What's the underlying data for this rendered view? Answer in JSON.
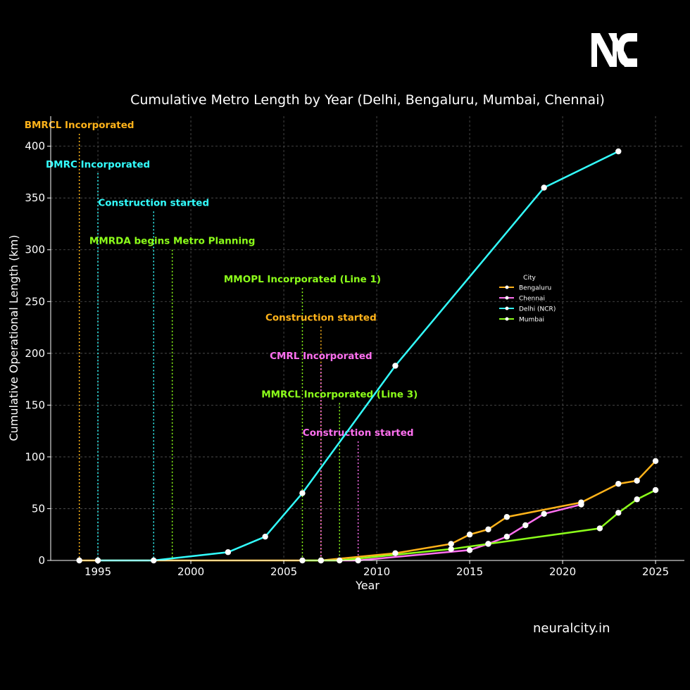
{
  "brand": {
    "logo_text": "NC",
    "watermark": "neuralcity.in"
  },
  "chart_data": {
    "type": "line",
    "title": "Cumulative Metro Length by Year (Delhi, Bengaluru, Mumbai, Chennai)",
    "xlabel": "Year",
    "ylabel": "Cumulative Operational Length (km)",
    "xlim": [
      1992.46,
      2026.55
    ],
    "ylim": [
      0,
      429
    ],
    "xticks": [
      1995,
      2000,
      2005,
      2010,
      2015,
      2020,
      2025
    ],
    "yticks": [
      0,
      50,
      100,
      150,
      200,
      250,
      300,
      350,
      400
    ],
    "grid": true,
    "background": "#000000",
    "legend": {
      "title": "City",
      "placement": "center-right"
    },
    "series": [
      {
        "name": "Bengaluru",
        "color": "#ffb31a",
        "x": [
          1994,
          2007,
          2011,
          2014,
          2015,
          2016,
          2017,
          2021,
          2023,
          2024,
          2025
        ],
        "y": [
          0,
          0,
          7,
          16,
          25,
          30,
          42,
          56,
          74,
          77,
          96
        ]
      },
      {
        "name": "Chennai",
        "color": "#ff70f0",
        "x": [
          2007,
          2009,
          2015,
          2016,
          2017,
          2018,
          2019,
          2021
        ],
        "y": [
          0,
          0,
          10,
          16,
          23,
          34,
          45,
          54
        ]
      },
      {
        "name": "Delhi (NCR)",
        "color": "#33ffff",
        "x": [
          1995,
          1998,
          2002,
          2004,
          2006,
          2011,
          2019,
          2023
        ],
        "y": [
          0,
          0,
          8,
          23,
          65,
          188,
          360,
          395
        ]
      },
      {
        "name": "Mumbai",
        "color": "#8cff1a",
        "x": [
          2006,
          2008,
          2014,
          2016,
          2022,
          2023,
          2024,
          2025
        ],
        "y": [
          0,
          0,
          11,
          16,
          31,
          46,
          59,
          68
        ]
      }
    ],
    "annotations": [
      {
        "text": "BMRCL Incorporated",
        "x": 1994,
        "y": 412,
        "color": "#ffb31a"
      },
      {
        "text": "DMRC Incorporated",
        "x": 1995,
        "y": 374,
        "color": "#33ffff"
      },
      {
        "text": "Construction started",
        "x": 1998,
        "y": 337,
        "color": "#33ffff"
      },
      {
        "text": "MMRDA begins Metro Planning",
        "x": 1999,
        "y": 300,
        "color": "#8cff1a"
      },
      {
        "text": "MMOPL Incorporated (Line 1)",
        "x": 2006,
        "y": 263,
        "color": "#8cff1a"
      },
      {
        "text": "Construction started",
        "x": 2007,
        "y": 226,
        "color": "#ffb31a"
      },
      {
        "text": "CMRL Incorporated",
        "x": 2007,
        "y": 189,
        "color": "#ff70f0"
      },
      {
        "text": "MMRCL Incorporated (Line 3)",
        "x": 2008,
        "y": 152,
        "color": "#8cff1a"
      },
      {
        "text": "Construction started",
        "x": 2009,
        "y": 115,
        "color": "#ff70f0"
      }
    ]
  }
}
